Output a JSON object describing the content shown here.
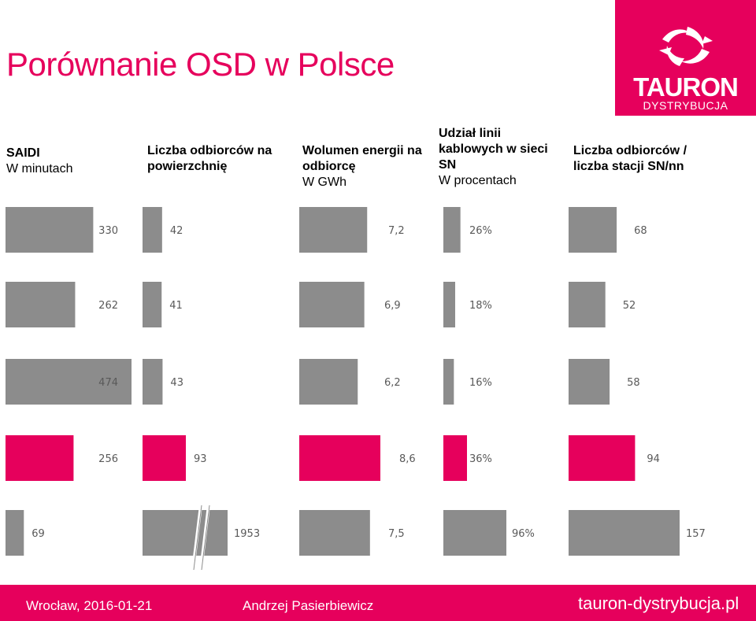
{
  "title": "Porównanie OSD w Polsce",
  "logo": {
    "name": "TAURON",
    "sub": "DYSTRYBUCJA"
  },
  "headers": [
    {
      "bold": [
        "SAIDI"
      ],
      "normal": [
        "W minutach"
      ]
    },
    {
      "bold": [
        "Liczba odbiorców na",
        "powierzchnię"
      ],
      "normal": []
    },
    {
      "bold": [
        "Wolumen energii na",
        "odbiorcę"
      ],
      "normal": [
        "W GWh"
      ]
    },
    {
      "bold": [
        "Udział linii",
        "kablowych w sieci",
        "SN"
      ],
      "normal": [
        "W procentach"
      ]
    },
    {
      "bold": [
        "Liczba odbiorców /",
        "liczba stacji SN/nn"
      ],
      "normal": []
    }
  ],
  "chart_data": {
    "type": "bar",
    "orientation": "horizontal",
    "rows": 5,
    "colors": {
      "default": "#8c8c8c",
      "highlight": "#e6005c",
      "label": "#595959"
    },
    "highlight_row": 3,
    "series": [
      {
        "name": "SAIDI",
        "values": [
          330,
          262,
          474,
          256,
          69
        ],
        "labels": [
          "330",
          "262",
          "474",
          "256",
          "69"
        ]
      },
      {
        "name": "Liczba odbiorców na powierzchnię",
        "values": [
          42,
          41,
          43,
          93,
          1953
        ],
        "labels": [
          "42",
          "41",
          "43",
          "93",
          "1953"
        ],
        "axis_break": true
      },
      {
        "name": "Wolumen energii na odbiorcę",
        "values": [
          7.2,
          6.9,
          6.2,
          8.6,
          7.5
        ],
        "labels": [
          "7,2",
          "6,9",
          "6,2",
          "8,6",
          "7,5"
        ]
      },
      {
        "name": "Udział linii kablowych w sieci SN",
        "values": [
          26,
          18,
          16,
          36,
          96
        ],
        "labels": [
          "26%",
          "18%",
          "16%",
          "36%",
          "96%"
        ]
      },
      {
        "name": "Liczba odbiorców / liczba stacji SN/nn",
        "values": [
          68,
          52,
          58,
          94,
          157
        ],
        "labels": [
          "68",
          "52",
          "58",
          "94",
          "157"
        ]
      }
    ]
  },
  "footer": {
    "left": "Wrocław, 2016-01-21",
    "center": "Andrzej Pasierbiewicz",
    "right": "tauron-dystrybucja.pl"
  }
}
